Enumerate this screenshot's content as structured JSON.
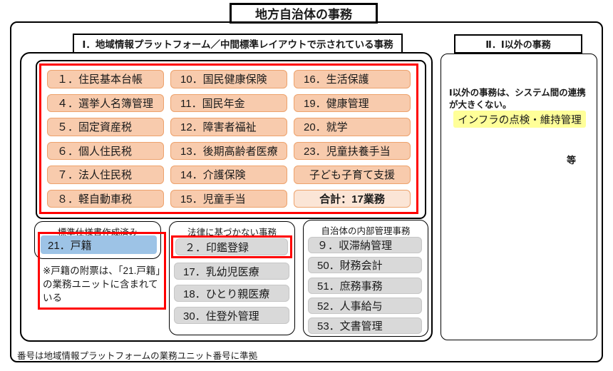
{
  "title": "地方自治体の事務",
  "footer": "番号は地域情報プラットフォームの業務ユニット番号に準拠",
  "colors": {
    "frame_red": "#FF0000",
    "item_orange": "#F8CBAD",
    "item_orange_border": "#EDA26C",
    "total_peach": "#FBE5D6",
    "item_gray": "#D9D9D9",
    "item_blue": "#9DC3E6",
    "highlight_yellow": "#FFFF99"
  },
  "section1": {
    "header": "Ⅰ．地域情報プラットフォーム／中間標準レイアウトで示されている事務",
    "platform": {
      "col1": [
        "１．住民基本台帳",
        "４．選挙人名簿管理",
        "５．固定資産税",
        "６．個人住民税",
        "７．法人住民税",
        "８．軽自動車税"
      ],
      "col2": [
        "10．国民健康保険",
        "11．国民年金",
        "12．障害者福祉",
        "13．後期高齢者医療",
        "14．介護保険",
        "15．児童手当"
      ],
      "col3": [
        "16．生活保護",
        "19．健康管理",
        "20．就学",
        "23．児童扶養手当"
      ],
      "extra": "子ども子育て支援",
      "total": "合計：17業務"
    },
    "standard_spec": {
      "title": "標準仕様書作成済み",
      "item": "21．戸籍",
      "note": "※戸籍の附票は、「21.戸籍」の業務ユニットに含まれている"
    },
    "non_statutory": {
      "title": "法律に基づかない事務",
      "highlighted": "２．印鑑登録",
      "items": [
        "17．乳幼児医療",
        "18．ひとり親医療",
        "30．住登外管理"
      ]
    },
    "internal_mgmt": {
      "title": "自治体の内部管理事務",
      "items": [
        "９．収滞納管理",
        "50．財務会計",
        "51．庶務事務",
        "52．人事給与",
        "53．文書管理"
      ]
    }
  },
  "section2": {
    "header": "Ⅱ．Ⅰ以外の事務",
    "note": "Ⅰ以外の事務は、システム間の連携が大きくない。",
    "highlighted": "インフラの点検・維持管理",
    "etc": "等"
  }
}
